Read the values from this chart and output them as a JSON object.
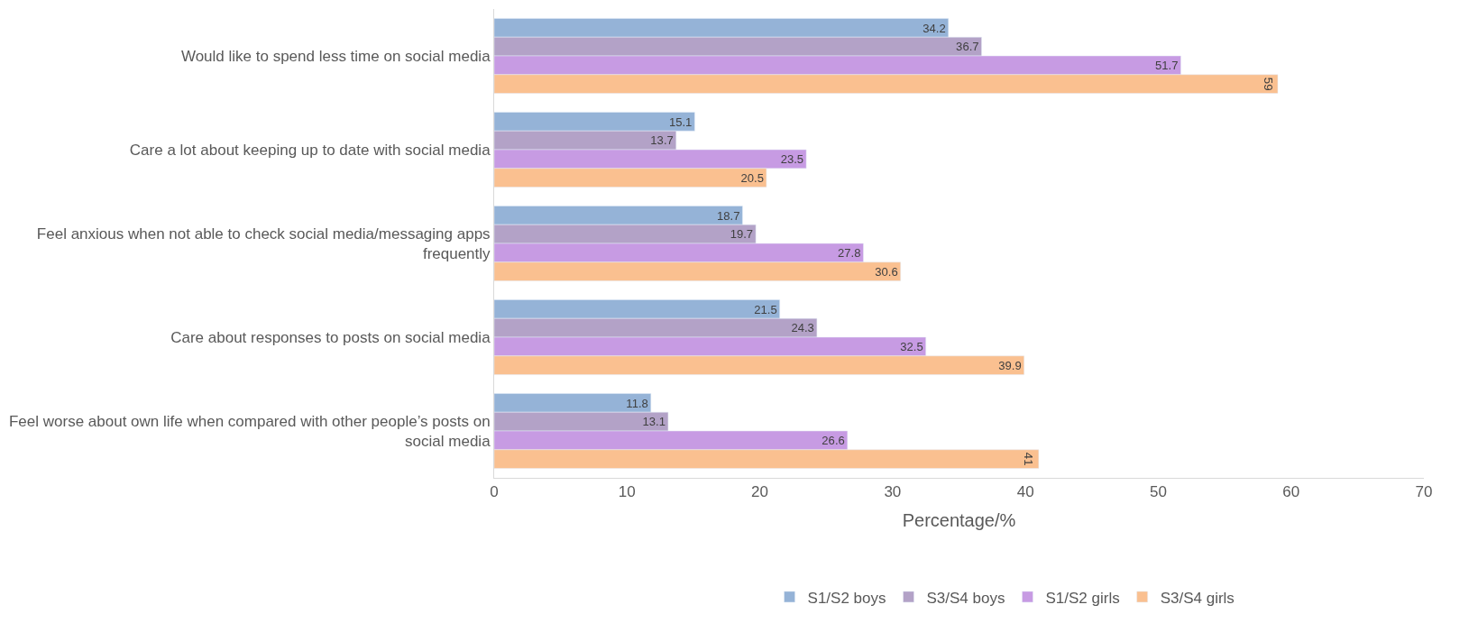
{
  "chart_data": {
    "type": "bar",
    "orientation": "horizontal",
    "xlabel": "Percentage/%",
    "categories": [
      "Would like to spend less time on social media",
      "Care a lot about keeping up to date with social media",
      "Feel anxious when not able to check social media/messaging apps frequently",
      "Care about responses to posts on social media",
      "Feel worse about own life when compared with other people’s posts on social media"
    ],
    "series": [
      {
        "name": "S1/S2 boys",
        "color": "#95b3d7",
        "values": [
          34.2,
          15.1,
          18.7,
          21.5,
          11.8
        ]
      },
      {
        "name": "S3/S4 boys",
        "color": "#b3a2c7",
        "values": [
          36.7,
          13.7,
          19.7,
          24.3,
          13.1
        ]
      },
      {
        "name": "S1/S2 girls",
        "color": "#c79be3",
        "values": [
          51.7,
          23.5,
          27.8,
          32.5,
          26.6
        ]
      },
      {
        "name": "S3/S4 girls",
        "color": "#fac090",
        "values": [
          59,
          20.5,
          30.6,
          39.9,
          41
        ]
      }
    ],
    "xlim": [
      0,
      70
    ],
    "xticks": [
      0,
      10,
      20,
      30,
      40,
      50,
      60,
      70
    ],
    "data_labels": true,
    "grid": false,
    "legend": "bottom"
  }
}
